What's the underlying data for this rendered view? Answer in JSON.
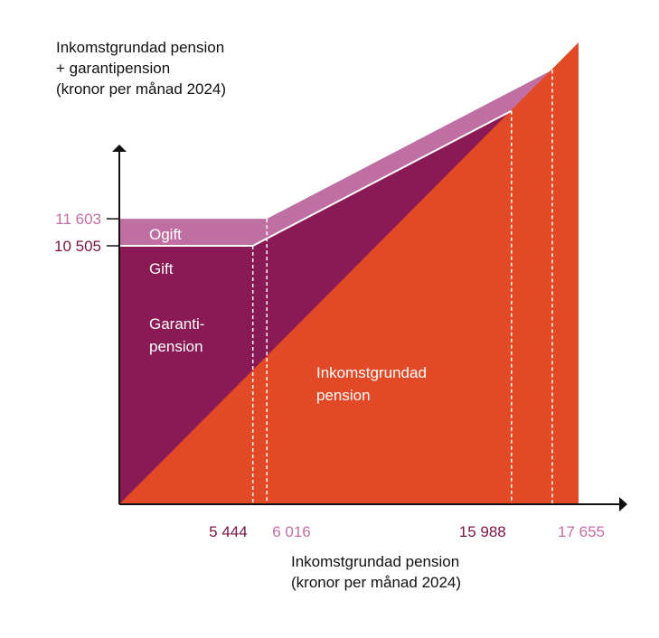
{
  "colors": {
    "ogift": "#c06fa2",
    "gift": "#8a1a55",
    "inkomst": "#e24a27",
    "dash": "#ffffff",
    "axis": "#111111",
    "tick_gift": "#7a1446",
    "tick_ogift": "#c06fa2"
  },
  "chart_data": {
    "type": "area",
    "ylabel": [
      "Inkomstgrundad pension",
      "+ garantipension",
      "(kronor per månad 2024)"
    ],
    "xlabel": [
      "Inkomstgrundad pension",
      "(kronor per månad 2024)"
    ],
    "area_labels": {
      "ogift": "Ogift",
      "gift": "Gift",
      "garanti": [
        "Garanti-",
        "pension"
      ],
      "inkomst": [
        "Inkomstgrundad",
        "pension"
      ]
    },
    "y_ticks": [
      {
        "value": 11603,
        "label": "11 603",
        "series": "ogift"
      },
      {
        "value": 10505,
        "label": "10 505",
        "series": "gift"
      }
    ],
    "x_ticks": [
      {
        "value": 5444,
        "label": "5 444",
        "series": "gift"
      },
      {
        "value": 6016,
        "label": "6 016",
        "series": "ogift"
      },
      {
        "value": 15988,
        "label": "15 988",
        "series": "gift"
      },
      {
        "value": 17655,
        "label": "17 655",
        "series": "ogift"
      }
    ],
    "series": [
      {
        "name": "Ogift",
        "x": [
          0,
          6016,
          17655
        ],
        "y": [
          11603,
          11603,
          17655
        ]
      },
      {
        "name": "Gift",
        "x": [
          0,
          5444,
          15988
        ],
        "y": [
          10505,
          10505,
          15988
        ]
      }
    ],
    "xlim": [
      0,
      19000
    ],
    "ylim": [
      0,
      19000
    ]
  }
}
